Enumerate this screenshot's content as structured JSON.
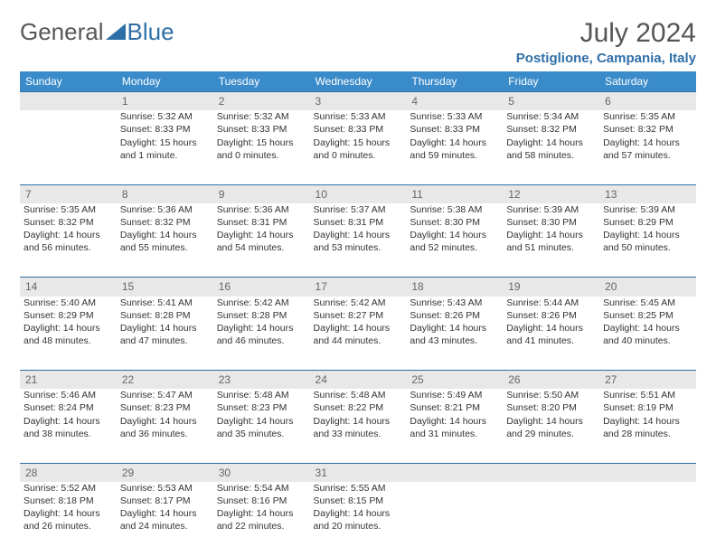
{
  "brand": {
    "part1": "General",
    "part2": "Blue"
  },
  "title": "July 2024",
  "location": "Postiglione, Campania, Italy",
  "colors": {
    "header_bg": "#3a8bc9",
    "accent": "#2f6fa7",
    "daynum_bg": "#e8e8e8",
    "text": "#333333"
  },
  "dayHeaders": [
    "Sunday",
    "Monday",
    "Tuesday",
    "Wednesday",
    "Thursday",
    "Friday",
    "Saturday"
  ],
  "weeks": [
    {
      "nums": [
        "",
        "1",
        "2",
        "3",
        "4",
        "5",
        "6"
      ],
      "cells": [
        null,
        {
          "sunrise": "Sunrise: 5:32 AM",
          "sunset": "Sunset: 8:33 PM",
          "day1": "Daylight: 15 hours",
          "day2": "and 1 minute."
        },
        {
          "sunrise": "Sunrise: 5:32 AM",
          "sunset": "Sunset: 8:33 PM",
          "day1": "Daylight: 15 hours",
          "day2": "and 0 minutes."
        },
        {
          "sunrise": "Sunrise: 5:33 AM",
          "sunset": "Sunset: 8:33 PM",
          "day1": "Daylight: 15 hours",
          "day2": "and 0 minutes."
        },
        {
          "sunrise": "Sunrise: 5:33 AM",
          "sunset": "Sunset: 8:33 PM",
          "day1": "Daylight: 14 hours",
          "day2": "and 59 minutes."
        },
        {
          "sunrise": "Sunrise: 5:34 AM",
          "sunset": "Sunset: 8:32 PM",
          "day1": "Daylight: 14 hours",
          "day2": "and 58 minutes."
        },
        {
          "sunrise": "Sunrise: 5:35 AM",
          "sunset": "Sunset: 8:32 PM",
          "day1": "Daylight: 14 hours",
          "day2": "and 57 minutes."
        }
      ]
    },
    {
      "nums": [
        "7",
        "8",
        "9",
        "10",
        "11",
        "12",
        "13"
      ],
      "cells": [
        {
          "sunrise": "Sunrise: 5:35 AM",
          "sunset": "Sunset: 8:32 PM",
          "day1": "Daylight: 14 hours",
          "day2": "and 56 minutes."
        },
        {
          "sunrise": "Sunrise: 5:36 AM",
          "sunset": "Sunset: 8:32 PM",
          "day1": "Daylight: 14 hours",
          "day2": "and 55 minutes."
        },
        {
          "sunrise": "Sunrise: 5:36 AM",
          "sunset": "Sunset: 8:31 PM",
          "day1": "Daylight: 14 hours",
          "day2": "and 54 minutes."
        },
        {
          "sunrise": "Sunrise: 5:37 AM",
          "sunset": "Sunset: 8:31 PM",
          "day1": "Daylight: 14 hours",
          "day2": "and 53 minutes."
        },
        {
          "sunrise": "Sunrise: 5:38 AM",
          "sunset": "Sunset: 8:30 PM",
          "day1": "Daylight: 14 hours",
          "day2": "and 52 minutes."
        },
        {
          "sunrise": "Sunrise: 5:39 AM",
          "sunset": "Sunset: 8:30 PM",
          "day1": "Daylight: 14 hours",
          "day2": "and 51 minutes."
        },
        {
          "sunrise": "Sunrise: 5:39 AM",
          "sunset": "Sunset: 8:29 PM",
          "day1": "Daylight: 14 hours",
          "day2": "and 50 minutes."
        }
      ]
    },
    {
      "nums": [
        "14",
        "15",
        "16",
        "17",
        "18",
        "19",
        "20"
      ],
      "cells": [
        {
          "sunrise": "Sunrise: 5:40 AM",
          "sunset": "Sunset: 8:29 PM",
          "day1": "Daylight: 14 hours",
          "day2": "and 48 minutes."
        },
        {
          "sunrise": "Sunrise: 5:41 AM",
          "sunset": "Sunset: 8:28 PM",
          "day1": "Daylight: 14 hours",
          "day2": "and 47 minutes."
        },
        {
          "sunrise": "Sunrise: 5:42 AM",
          "sunset": "Sunset: 8:28 PM",
          "day1": "Daylight: 14 hours",
          "day2": "and 46 minutes."
        },
        {
          "sunrise": "Sunrise: 5:42 AM",
          "sunset": "Sunset: 8:27 PM",
          "day1": "Daylight: 14 hours",
          "day2": "and 44 minutes."
        },
        {
          "sunrise": "Sunrise: 5:43 AM",
          "sunset": "Sunset: 8:26 PM",
          "day1": "Daylight: 14 hours",
          "day2": "and 43 minutes."
        },
        {
          "sunrise": "Sunrise: 5:44 AM",
          "sunset": "Sunset: 8:26 PM",
          "day1": "Daylight: 14 hours",
          "day2": "and 41 minutes."
        },
        {
          "sunrise": "Sunrise: 5:45 AM",
          "sunset": "Sunset: 8:25 PM",
          "day1": "Daylight: 14 hours",
          "day2": "and 40 minutes."
        }
      ]
    },
    {
      "nums": [
        "21",
        "22",
        "23",
        "24",
        "25",
        "26",
        "27"
      ],
      "cells": [
        {
          "sunrise": "Sunrise: 5:46 AM",
          "sunset": "Sunset: 8:24 PM",
          "day1": "Daylight: 14 hours",
          "day2": "and 38 minutes."
        },
        {
          "sunrise": "Sunrise: 5:47 AM",
          "sunset": "Sunset: 8:23 PM",
          "day1": "Daylight: 14 hours",
          "day2": "and 36 minutes."
        },
        {
          "sunrise": "Sunrise: 5:48 AM",
          "sunset": "Sunset: 8:23 PM",
          "day1": "Daylight: 14 hours",
          "day2": "and 35 minutes."
        },
        {
          "sunrise": "Sunrise: 5:48 AM",
          "sunset": "Sunset: 8:22 PM",
          "day1": "Daylight: 14 hours",
          "day2": "and 33 minutes."
        },
        {
          "sunrise": "Sunrise: 5:49 AM",
          "sunset": "Sunset: 8:21 PM",
          "day1": "Daylight: 14 hours",
          "day2": "and 31 minutes."
        },
        {
          "sunrise": "Sunrise: 5:50 AM",
          "sunset": "Sunset: 8:20 PM",
          "day1": "Daylight: 14 hours",
          "day2": "and 29 minutes."
        },
        {
          "sunrise": "Sunrise: 5:51 AM",
          "sunset": "Sunset: 8:19 PM",
          "day1": "Daylight: 14 hours",
          "day2": "and 28 minutes."
        }
      ]
    },
    {
      "nums": [
        "28",
        "29",
        "30",
        "31",
        "",
        "",
        ""
      ],
      "cells": [
        {
          "sunrise": "Sunrise: 5:52 AM",
          "sunset": "Sunset: 8:18 PM",
          "day1": "Daylight: 14 hours",
          "day2": "and 26 minutes."
        },
        {
          "sunrise": "Sunrise: 5:53 AM",
          "sunset": "Sunset: 8:17 PM",
          "day1": "Daylight: 14 hours",
          "day2": "and 24 minutes."
        },
        {
          "sunrise": "Sunrise: 5:54 AM",
          "sunset": "Sunset: 8:16 PM",
          "day1": "Daylight: 14 hours",
          "day2": "and 22 minutes."
        },
        {
          "sunrise": "Sunrise: 5:55 AM",
          "sunset": "Sunset: 8:15 PM",
          "day1": "Daylight: 14 hours",
          "day2": "and 20 minutes."
        },
        null,
        null,
        null
      ]
    }
  ]
}
